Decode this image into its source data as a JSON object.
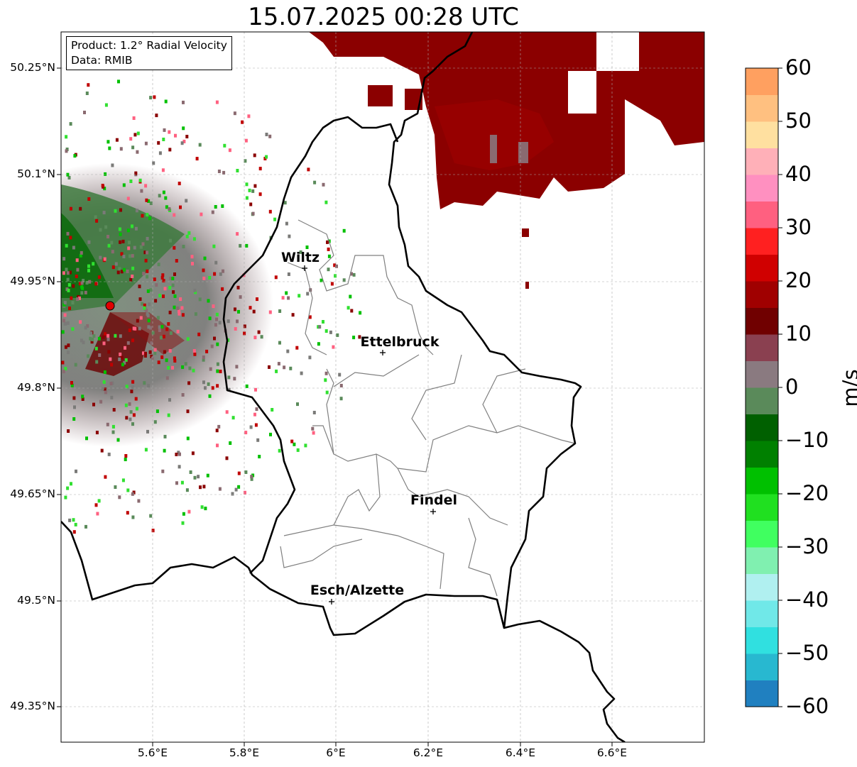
{
  "title": "15.07.2025 00:28 UTC",
  "info": {
    "product": "Product: 1.2° Radial Velocity",
    "data": "Data: RMIB"
  },
  "lat_labels": [
    "50.25°N",
    "50.1°N",
    "49.95°N",
    "49.8°N",
    "49.65°N",
    "49.5°N",
    "49.35°N"
  ],
  "lon_labels": [
    "5.6°E",
    "5.8°E",
    "6°E",
    "6.2°E",
    "6.4°E",
    "6.6°E"
  ],
  "cities": [
    {
      "name": "Wiltz"
    },
    {
      "name": "Ettelbruck"
    },
    {
      "name": "Findel"
    },
    {
      "name": "Esch/Alzette"
    }
  ],
  "colorbar": {
    "unit": "m/s",
    "ticks": [
      "60",
      "50",
      "40",
      "30",
      "20",
      "10",
      "0",
      "−10",
      "−20",
      "−30",
      "−40",
      "−50",
      "−60"
    ],
    "range": [
      -60,
      60
    ],
    "colors": [
      "#2080c0",
      "#28b8d0",
      "#30e0e0",
      "#70e8e8",
      "#b0f0f0",
      "#80f0b0",
      "#40ff60",
      "#20e020",
      "#00c000",
      "#008000",
      "#006000",
      "#5a8a5a",
      "#8a7a80",
      "#8a4050",
      "#700000",
      "#a00000",
      "#d00000",
      "#ff2020",
      "#ff6080",
      "#ff90c0",
      "#ffb0b8",
      "#ffe0a0",
      "#ffc080",
      "#ffa060"
    ]
  },
  "map": {
    "lon_range": [
      5.4,
      6.8
    ],
    "lat_range": [
      49.3,
      50.3
    ],
    "radar_site": {
      "lon": 5.505,
      "lat": 49.915
    }
  }
}
